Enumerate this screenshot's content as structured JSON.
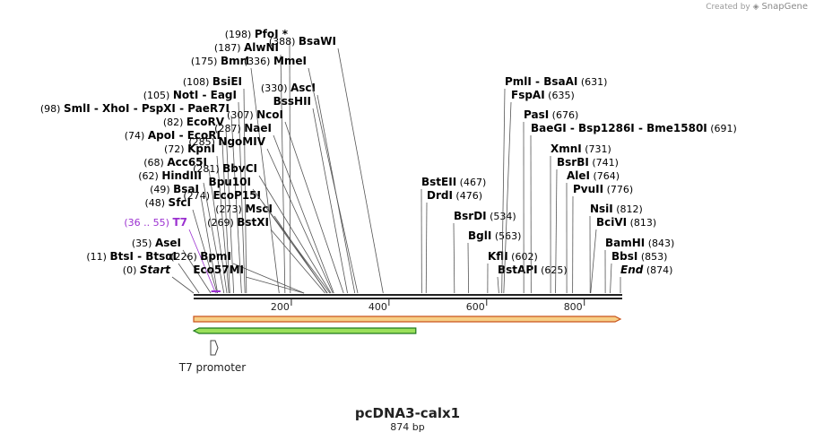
{
  "credit": {
    "prefix": "Created by",
    "brand": "SnapGene"
  },
  "plasmid": {
    "name": "pcDNA3-calx1",
    "length_label": "874 bp",
    "length": 874
  },
  "colors": {
    "backbone": "#222222",
    "t7": "#9b30d0",
    "orange_fill": "#f7cf86",
    "orange_edge": "#c9541c",
    "green_fill": "#9be05a",
    "green_edge": "#1f7a1f",
    "label": "#000000"
  },
  "axis": {
    "ticks": [
      200,
      400,
      600,
      800
    ]
  },
  "sites": [
    {
      "pos": "(0)",
      "name": "Start",
      "bp": 0,
      "italic": true
    },
    {
      "pos": "(11)",
      "name": "BtsI  -  BtsαI",
      "bp": 11
    },
    {
      "pos": "(35)",
      "name": "AseI",
      "bp": 35
    },
    {
      "pos": "(36 .. 55)",
      "name": "T7",
      "bp": 45,
      "t7": true
    },
    {
      "pos": "(48)",
      "name": "SfcI",
      "bp": 48
    },
    {
      "pos": "(49)",
      "name": "BsaI",
      "bp": 49
    },
    {
      "pos": "(62)",
      "name": "HindIII",
      "bp": 62
    },
    {
      "pos": "(68)",
      "name": "Acc65I",
      "bp": 68
    },
    {
      "pos": "(72)",
      "name": "KpnI",
      "bp": 72
    },
    {
      "pos": "(74)",
      "name": "ApoI  -  EcoRI",
      "bp": 74
    },
    {
      "pos": "(82)",
      "name": "EcoRV",
      "bp": 82
    },
    {
      "pos": "(98)",
      "name": "SmlI  -  XhoI  -  PspXI  -  PaeR7I",
      "bp": 98
    },
    {
      "pos": "(105)",
      "name": "NotI  -  EagI",
      "bp": 105
    },
    {
      "pos": "(108)",
      "name": "BsiEI",
      "bp": 108
    },
    {
      "pos": "(175)",
      "name": "BmrI",
      "bp": 175
    },
    {
      "pos": "(187)",
      "name": "AlwNI",
      "bp": 187
    },
    {
      "pos": "(198)",
      "name": "PfoI *",
      "bp": 198
    },
    {
      "pos": "(226)",
      "name": "BpmI",
      "bp": 226
    },
    {
      "pos": "Eco57MI",
      "name": "",
      "bp": 226,
      "plain": true
    },
    {
      "pos": "(269)",
      "name": "BstXI",
      "bp": 269
    },
    {
      "pos": "(273)",
      "name": "MscI",
      "bp": 273
    },
    {
      "pos": "(274)",
      "name": "EcoP15I",
      "bp": 274
    },
    {
      "pos": "Bpu10I",
      "name": "",
      "bp": 279,
      "plain": true
    },
    {
      "pos": "(281)",
      "name": "BbvCI",
      "bp": 281
    },
    {
      "pos": "(285)",
      "name": "NgoMIV",
      "bp": 285
    },
    {
      "pos": "(287)",
      "name": "NaeI",
      "bp": 287
    },
    {
      "pos": "(307)",
      "name": "NcoI",
      "bp": 307
    },
    {
      "pos": "BssHII",
      "name": "",
      "bp": 315,
      "plain": true
    },
    {
      "pos": "(330)",
      "name": "AscI",
      "bp": 330
    },
    {
      "pos": "(336)",
      "name": "MmeI",
      "bp": 336
    },
    {
      "pos": "(388)",
      "name": "BsaWI",
      "bp": 388
    },
    {
      "pos": "BstEII",
      "name": "(467)",
      "bp": 467,
      "right": true
    },
    {
      "pos": "DrdI",
      "name": "(476)",
      "bp": 476,
      "right": true
    },
    {
      "pos": "BsrDI",
      "name": "(534)",
      "bp": 534,
      "right": true
    },
    {
      "pos": "BglI",
      "name": "(563)",
      "bp": 563,
      "right": true
    },
    {
      "pos": "KflI",
      "name": "(602)",
      "bp": 602,
      "right": true
    },
    {
      "pos": "BstAPI",
      "name": "(625)",
      "bp": 625,
      "right": true
    },
    {
      "pos": "PmlI  -  BsaAI",
      "name": "(631)",
      "bp": 631,
      "right": true
    },
    {
      "pos": "FspAI",
      "name": "(635)",
      "bp": 635,
      "right": true
    },
    {
      "pos": "PasI",
      "name": "(676)",
      "bp": 676,
      "right": true
    },
    {
      "pos": "BaeGI  -  Bsp1286I  -  Bme1580I",
      "name": "(691)",
      "bp": 691,
      "right": true
    },
    {
      "pos": "XmnI",
      "name": "(731)",
      "bp": 731,
      "right": true
    },
    {
      "pos": "BsrBI",
      "name": "(741)",
      "bp": 741,
      "right": true
    },
    {
      "pos": "AleI",
      "name": "(764)",
      "bp": 764,
      "right": true
    },
    {
      "pos": "PvuII",
      "name": "(776)",
      "bp": 776,
      "right": true
    },
    {
      "pos": "NsiI",
      "name": "(812)",
      "bp": 812,
      "right": true
    },
    {
      "pos": "BciVI",
      "name": "(813)",
      "bp": 813,
      "right": true
    },
    {
      "pos": "BamHI",
      "name": "(843)",
      "bp": 843,
      "right": true
    },
    {
      "pos": "BbsI",
      "name": "(853)",
      "bp": 853,
      "right": true
    },
    {
      "pos": "End",
      "name": "(874)",
      "bp": 874,
      "right": true,
      "italic": true
    }
  ],
  "features": [
    {
      "name": "insert-orange",
      "start": 0,
      "end": 874,
      "direction": "forward"
    },
    {
      "name": "insert-green",
      "start": 0,
      "end": 455,
      "direction": "reverse"
    }
  ],
  "promoter": {
    "label": "T7 promoter"
  }
}
